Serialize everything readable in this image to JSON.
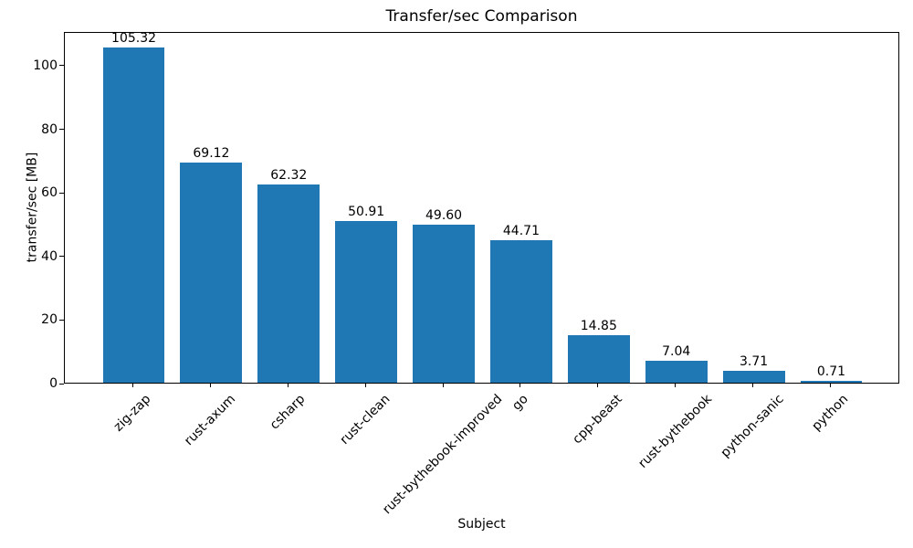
{
  "chart_data": {
    "type": "bar",
    "title": "Transfer/sec Comparison",
    "xlabel": "Subject",
    "ylabel": "transfer/sec [MB]",
    "categories": [
      "zig-zap",
      "rust-axum",
      "csharp",
      "rust-clean",
      "rust-bythebook-improved",
      "go",
      "cpp-beast",
      "rust-bythebook",
      "python-sanic",
      "python"
    ],
    "values": [
      105.32,
      69.12,
      62.32,
      50.91,
      49.6,
      44.71,
      14.85,
      7.04,
      3.71,
      0.71
    ],
    "value_labels": [
      "105.32",
      "69.12",
      "62.32",
      "50.91",
      "49.60",
      "44.71",
      "14.85",
      "7.04",
      "3.71",
      "0.71"
    ],
    "yticks": [
      0,
      20,
      40,
      60,
      80,
      100
    ],
    "ylim": [
      0,
      110.6
    ],
    "bar_color": "#1f77b4",
    "axis_color": "#000000",
    "background_color": "#ffffff",
    "grid": false,
    "legend": null,
    "xtick_rotation_deg": 45,
    "bar_label_position": "above"
  }
}
